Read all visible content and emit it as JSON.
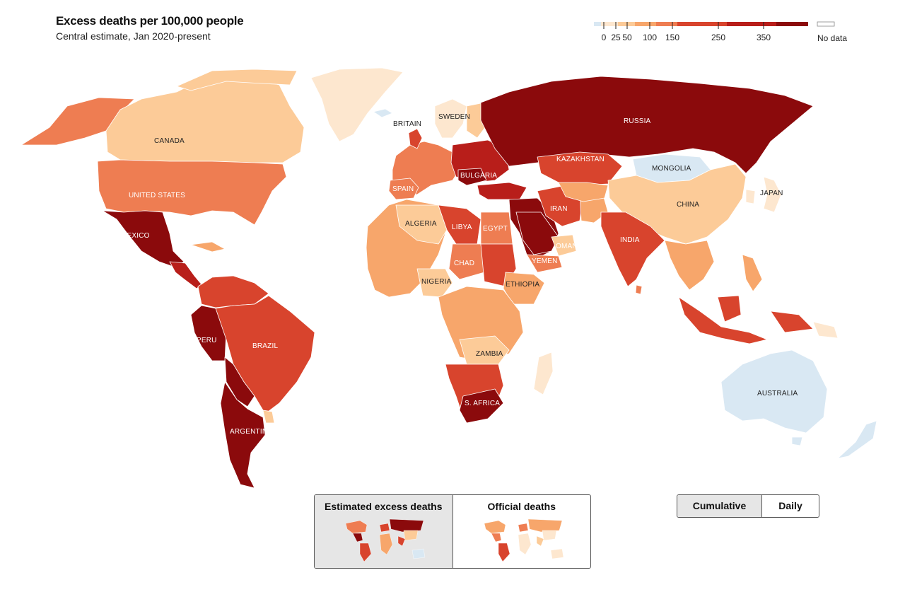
{
  "header": {
    "title": "Excess deaths per 100,000 people",
    "subtitle": "Central estimate, Jan 2020-present"
  },
  "legend": {
    "ticks": [
      "0",
      "25",
      "50",
      "100",
      "150",
      "250",
      "350"
    ],
    "no_data_label": "No data",
    "colors": [
      "#d9e8f3",
      "#fde7cf",
      "#fccb98",
      "#f7a66b",
      "#ee7d52",
      "#d8442d",
      "#b81e1a",
      "#8b0a0c"
    ]
  },
  "map": {
    "labels": {
      "canada": "CANADA",
      "united_states": "UNITED STATES",
      "mexico": "MEXICO",
      "peru": "PERU",
      "brazil": "BRAZIL",
      "argentina": "ARGENTINA",
      "britain": "BRITAIN",
      "sweden": "SWEDEN",
      "spain": "SPAIN",
      "bulgaria": "BULGARIA",
      "algeria": "ALGERIA",
      "libya": "LIBYA",
      "egypt": "EGYPT",
      "chad": "CHAD",
      "nigeria": "NIGERIA",
      "ethiopia": "ETHIOPIA",
      "zambia": "ZAMBIA",
      "s_africa": "S. AFRICA",
      "russia": "RUSSIA",
      "kazakhstan": "KAZAKHSTAN",
      "mongolia": "MONGOLIA",
      "china": "CHINA",
      "japan": "JAPAN",
      "iran": "IRAN",
      "india": "INDIA",
      "oman": "OMAN",
      "yemen": "YEMEN",
      "australia": "AUSTRALIA"
    }
  },
  "view_toggle": {
    "estimated_label": "Estimated excess deaths",
    "official_label": "Official deaths"
  },
  "mode_toggle": {
    "cumulative_label": "Cumulative",
    "daily_label": "Daily"
  }
}
